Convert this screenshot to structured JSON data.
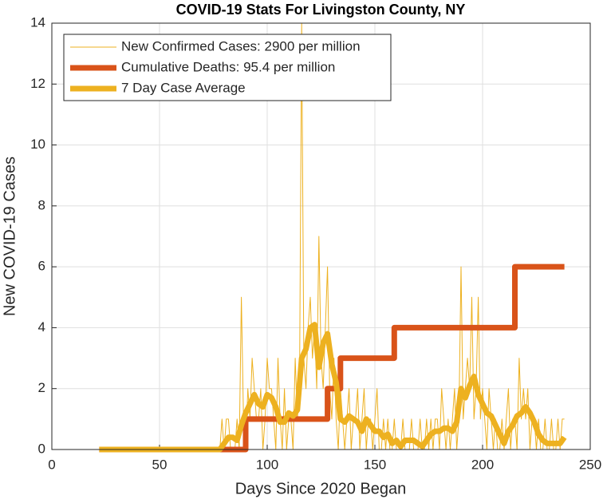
{
  "chart_data": {
    "type": "line",
    "title": "COVID-19 Stats For Livingston County, NY",
    "xlabel": "Days Since 2020 Began",
    "ylabel": "New COVID-19 Cases",
    "xlim": [
      0,
      250
    ],
    "xticks": [
      0,
      50,
      100,
      150,
      200,
      250
    ],
    "ylim": [
      0,
      14
    ],
    "yticks": [
      0,
      2,
      4,
      6,
      8,
      10,
      12,
      14
    ],
    "grid": true,
    "legend": "upper left",
    "series": [
      {
        "name": "New Confirmed Cases: 2900 per million",
        "color": "#EDB120",
        "x": [
          22,
          77,
          78,
          79,
          80,
          81,
          82,
          83,
          84,
          85,
          86,
          87,
          88,
          89,
          90,
          91,
          92,
          93,
          94,
          95,
          96,
          97,
          98,
          99,
          100,
          101,
          102,
          103,
          104,
          105,
          106,
          107,
          108,
          109,
          110,
          111,
          112,
          113,
          114,
          115,
          116,
          117,
          118,
          119,
          120,
          121,
          122,
          123,
          124,
          125,
          126,
          127,
          128,
          129,
          130,
          131,
          132,
          133,
          134,
          135,
          136,
          137,
          138,
          139,
          140,
          141,
          142,
          143,
          144,
          145,
          146,
          147,
          148,
          149,
          150,
          151,
          152,
          153,
          154,
          155,
          156,
          157,
          158,
          159,
          160,
          161,
          162,
          163,
          164,
          165,
          166,
          167,
          168,
          169,
          170,
          171,
          172,
          173,
          174,
          175,
          176,
          177,
          178,
          179,
          180,
          181,
          182,
          183,
          184,
          185,
          186,
          187,
          188,
          189,
          190,
          191,
          192,
          193,
          194,
          195,
          196,
          197,
          198,
          199,
          200,
          201,
          202,
          203,
          204,
          205,
          206,
          207,
          208,
          209,
          210,
          211,
          212,
          213,
          214,
          215,
          216,
          217,
          218,
          219,
          220,
          221,
          222,
          223,
          224,
          225,
          226,
          227,
          228,
          229,
          230,
          231,
          232,
          233,
          234,
          235,
          236,
          237,
          238
        ],
        "values": [
          0,
          0,
          0,
          1,
          0,
          1,
          1,
          0,
          0,
          0,
          1,
          0,
          5,
          1,
          0,
          2,
          1,
          3,
          2,
          1,
          1,
          2,
          0,
          1,
          3,
          2,
          2,
          1,
          0,
          3,
          1,
          0,
          2,
          0,
          1,
          1,
          0,
          3,
          1,
          2,
          14,
          3,
          2,
          4,
          5,
          3,
          4,
          2,
          7,
          3,
          2,
          4,
          6,
          2,
          1,
          3,
          1,
          0,
          2,
          1,
          0,
          1,
          2,
          0,
          1,
          1,
          2,
          0,
          1,
          2,
          0,
          1,
          1,
          0,
          1,
          2,
          0,
          0,
          1,
          0,
          1,
          0,
          0,
          1,
          0,
          0,
          0,
          1,
          0,
          0,
          0,
          1,
          0,
          0,
          0,
          1,
          0,
          0,
          1,
          0,
          1,
          0,
          1,
          1,
          0,
          2,
          1,
          0,
          1,
          0,
          1,
          2,
          0,
          1,
          6,
          1,
          2,
          3,
          2,
          5,
          1,
          2,
          5,
          1,
          2,
          1,
          0,
          2,
          1,
          0,
          1,
          0,
          0,
          1,
          0,
          1,
          2,
          0,
          1,
          1,
          0,
          3,
          1,
          2,
          1,
          2,
          0,
          1,
          1,
          0,
          1,
          0,
          0,
          1,
          0,
          0,
          1,
          0,
          0,
          1,
          0,
          1,
          1
        ]
      },
      {
        "name": "Cumulative Deaths: 95.4 per million",
        "color": "#D95319",
        "x": [
          22,
          90,
          90,
          128,
          128,
          134,
          134,
          159,
          159,
          215,
          215,
          238
        ],
        "values": [
          0,
          0,
          1,
          1,
          2,
          2,
          3,
          3,
          4,
          4,
          6,
          6
        ]
      },
      {
        "name": "7 Day Case Average",
        "color": "#EDB120",
        "x": [
          22,
          24,
          26,
          28,
          30,
          32,
          34,
          36,
          38,
          40,
          42,
          44,
          46,
          48,
          50,
          52,
          54,
          56,
          58,
          60,
          62,
          64,
          66,
          68,
          70,
          72,
          74,
          76,
          78,
          80,
          82,
          84,
          86,
          88,
          90,
          92,
          94,
          96,
          98,
          100,
          102,
          104,
          106,
          108,
          110,
          112,
          114,
          116,
          118,
          120,
          122,
          124,
          126,
          128,
          130,
          132,
          134,
          136,
          138,
          140,
          142,
          144,
          146,
          148,
          150,
          152,
          154,
          156,
          158,
          160,
          162,
          164,
          166,
          168,
          170,
          172,
          174,
          176,
          178,
          180,
          182,
          184,
          186,
          188,
          190,
          192,
          194,
          196,
          198,
          200,
          202,
          204,
          206,
          208,
          210,
          212,
          214,
          216,
          218,
          220,
          222,
          224,
          226,
          228,
          230,
          232,
          234,
          236,
          238
        ],
        "values": [
          0,
          0,
          0,
          0,
          0,
          0,
          0,
          0,
          0,
          0,
          0,
          0,
          0,
          0,
          0,
          0,
          0,
          0,
          0,
          0,
          0,
          0,
          0,
          0,
          0,
          0,
          0,
          0,
          0,
          0.2,
          0.4,
          0.4,
          0.3,
          0.8,
          1.2,
          1.5,
          1.8,
          1.5,
          1.4,
          1.8,
          1.7,
          1.4,
          0.9,
          0.9,
          1.2,
          1.1,
          1.3,
          3.0,
          3.3,
          4.0,
          4.1,
          2.7,
          3.5,
          3.8,
          2.8,
          2.2,
          1.0,
          0.9,
          1.1,
          1.0,
          0.9,
          0.6,
          1.0,
          0.8,
          0.6,
          0.6,
          0.4,
          0.5,
          0.2,
          0.3,
          0.1,
          0.3,
          0.3,
          0.3,
          0.2,
          0.1,
          0.3,
          0.5,
          0.6,
          0.6,
          0.7,
          0.7,
          0.6,
          0.9,
          2.0,
          1.7,
          2.1,
          2.4,
          1.8,
          1.5,
          1.2,
          1.1,
          0.8,
          0.5,
          0.2,
          0.6,
          0.8,
          1.1,
          1.2,
          1.4,
          1.2,
          0.9,
          0.5,
          0.3,
          0.2,
          0.2,
          0.2,
          0.2,
          0.4
        ]
      }
    ]
  }
}
